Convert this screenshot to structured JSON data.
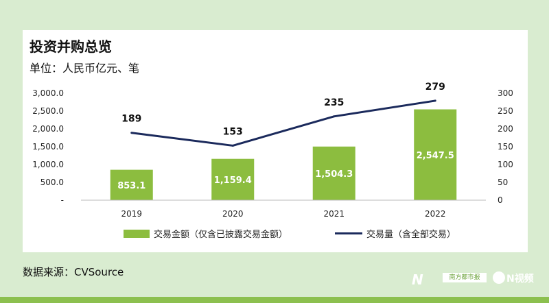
{
  "title": "投资并购总览",
  "subtitle": "单位：人民币亿元、笔",
  "source": "数据来源：CVSource",
  "watermark": {
    "nd_mark": "N",
    "brand_box": "南方都市报",
    "n_video": "N视频"
  },
  "colors": {
    "bar": "#8cbd3f",
    "line": "#1b2a5c",
    "background": "#d9ecd0",
    "accent": "#8cc04f"
  },
  "chart_data": {
    "type": "bar",
    "categories": [
      "2019",
      "2020",
      "2021",
      "2022"
    ],
    "series": [
      {
        "name": "交易金额（仅含已披露交易金额）",
        "type": "bar",
        "axis": "left",
        "values": [
          853.1,
          1159.4,
          1504.3,
          2547.5
        ],
        "labels": [
          "853.1",
          "1,159.4",
          "1,504.3",
          "2,547.5"
        ]
      },
      {
        "name": "交易量（含全部交易）",
        "type": "line",
        "axis": "right",
        "values": [
          189,
          153,
          235,
          279
        ],
        "labels": [
          "189",
          "153",
          "235",
          "279"
        ]
      }
    ],
    "y_left": {
      "ylim": [
        0,
        3000
      ],
      "ticks": [
        "-",
        "500.0",
        "1,000.0",
        "1,500.0",
        "2,000.0",
        "2,500.0",
        "3,000.0"
      ]
    },
    "y_right": {
      "ylim": [
        0,
        300
      ],
      "ticks": [
        "0",
        "50",
        "100",
        "150",
        "200",
        "250",
        "300"
      ]
    },
    "grid": false,
    "legend_position": "bottom"
  }
}
